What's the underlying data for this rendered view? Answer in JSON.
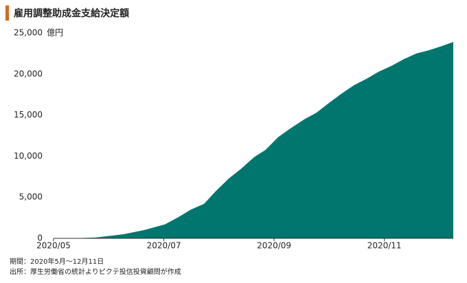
{
  "chart_data": {
    "type": "area",
    "title": "雇用調整助成金支給決定額",
    "y_unit": "億円",
    "notes": [
      "期間：2020年5月～12月11日",
      "出所：厚生労働省の統計よりピクテ投信投資顧問が作成"
    ],
    "x": [
      0,
      0.4,
      0.77,
      1.27,
      1.64,
      2.02,
      2.27,
      2.49,
      2.73,
      2.95,
      3.18,
      3.39,
      3.64,
      3.85,
      4.07,
      4.3,
      4.55,
      4.77,
      4.98,
      5.22,
      5.44,
      5.67,
      5.9,
      6.13,
      6.35,
      6.58,
      6.81,
      7.04,
      7.25
    ],
    "values": [
      0,
      20,
      100,
      500,
      1000,
      1700,
      2600,
      3500,
      4200,
      5800,
      7300,
      8400,
      9900,
      10800,
      12300,
      13400,
      14500,
      15300,
      16400,
      17600,
      18600,
      19400,
      20300,
      21000,
      21800,
      22500,
      22900,
      23400,
      23900
    ],
    "color": "#00766e",
    "xlim": [
      0,
      7.25
    ],
    "xticks": [
      {
        "value": 0,
        "label": "2020/05"
      },
      {
        "value": 2,
        "label": "2020/07"
      },
      {
        "value": 4,
        "label": "2020/09"
      },
      {
        "value": 6,
        "label": "2020/11"
      }
    ],
    "ylim": [
      0,
      25000
    ],
    "yticks": [
      0,
      {
        "value": 5000,
        "label": "5,000"
      },
      {
        "value": 10000,
        "label": "10,000"
      },
      {
        "value": 15000,
        "label": "15,000"
      },
      {
        "value": 20000,
        "label": "20,000"
      },
      {
        "value": 25000,
        "label": "25,000"
      }
    ]
  }
}
